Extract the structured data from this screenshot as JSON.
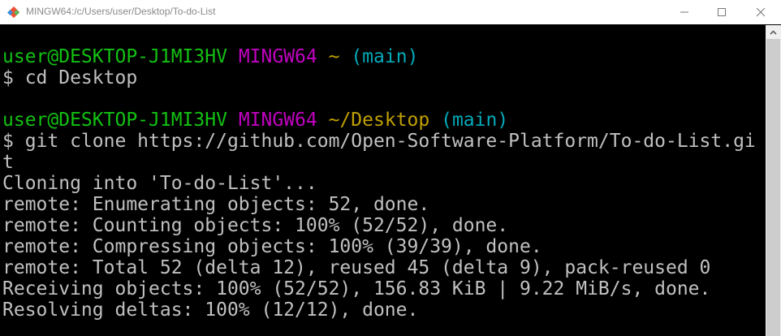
{
  "window": {
    "title": "MINGW64:/c/Users/user/Desktop/To-do-List",
    "icon": "git-bash-icon"
  },
  "prompt1": {
    "user_host": "user@DESKTOP-J1MI3HV",
    "system": "MINGW64",
    "path": "~",
    "branch": "(main)"
  },
  "cmd1": "$ cd Desktop",
  "prompt2": {
    "user_host": "user@DESKTOP-J1MI3HV",
    "system": "MINGW64",
    "path": "~/Desktop",
    "branch": "(main)"
  },
  "cmd2": [
    "$ git clone https://github.com/Open-Software-Platform/To-do-List.gi",
    "t"
  ],
  "output": [
    "Cloning into 'To-do-List'...",
    "remote: Enumerating objects: 52, done.",
    "remote: Counting objects: 100% (52/52), done.",
    "remote: Compressing objects: 100% (39/39), done.",
    "remote: Total 52 (delta 12), reused 45 (delta 9), pack-reused 0",
    "Receiving objects: 100% (52/52), 156.83 KiB | 9.22 MiB/s, done.",
    "Resolving deltas: 100% (12/12), done."
  ],
  "colors": {
    "user_host": "#13c113",
    "system": "#c000c0",
    "path": "#c0a000",
    "branch": "#00aab8",
    "text": "#c0c0c0"
  }
}
